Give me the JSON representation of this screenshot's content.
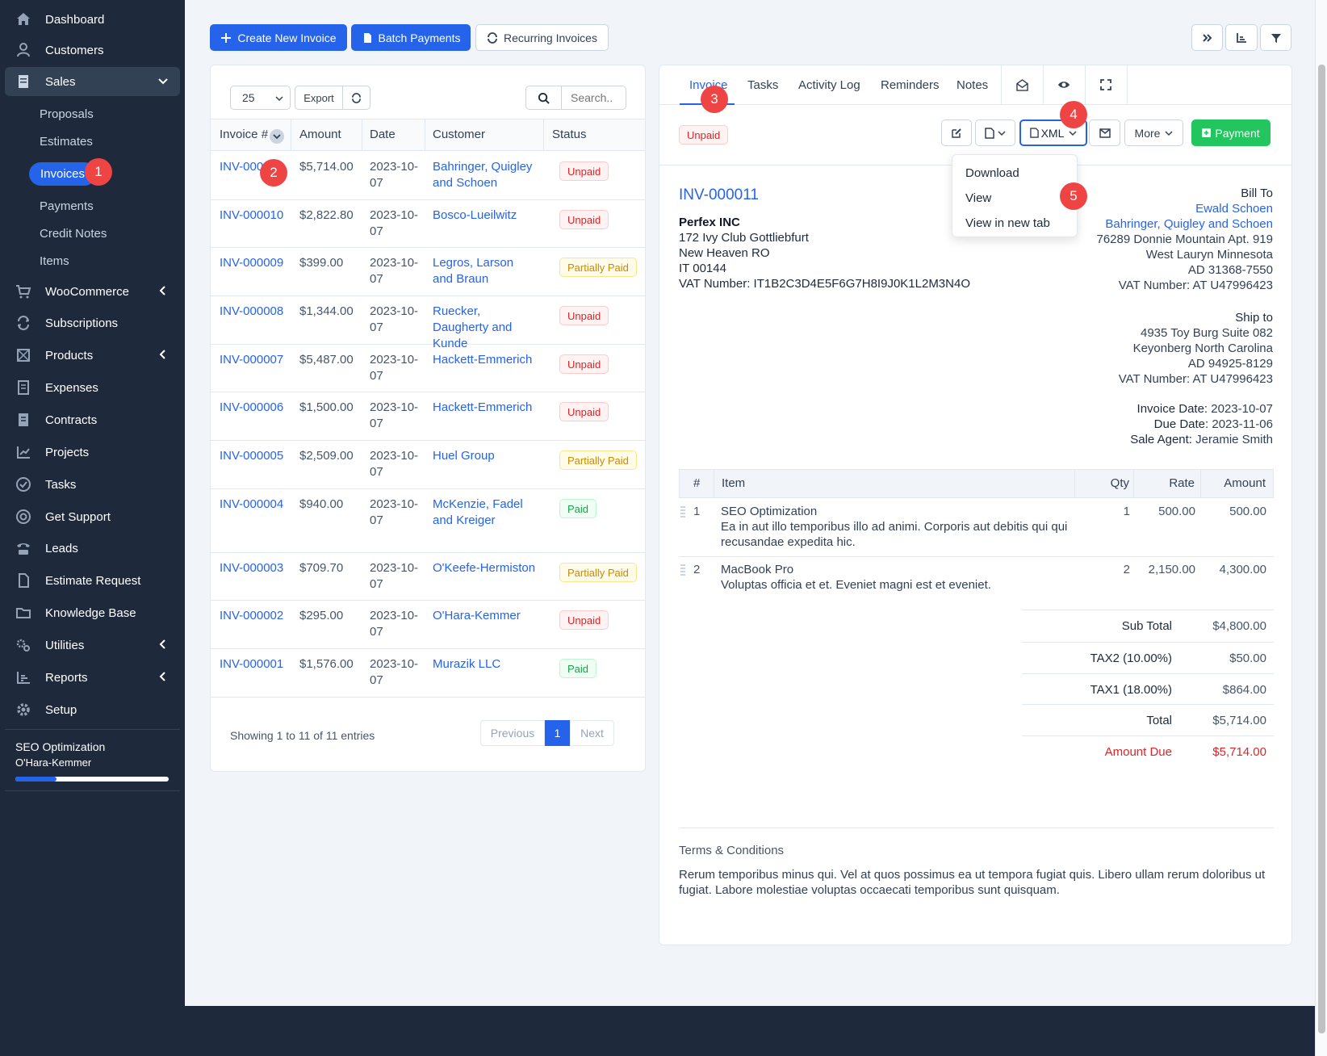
{
  "sidebar": {
    "items": [
      {
        "label": "Dashboard",
        "icon": "home-icon"
      },
      {
        "label": "Customers",
        "icon": "user-icon"
      },
      {
        "label": "Sales",
        "icon": "document-icon"
      },
      {
        "label": "WooCommerce",
        "icon": "cart-icon"
      },
      {
        "label": "Subscriptions",
        "icon": "refresh-icon"
      },
      {
        "label": "Products",
        "icon": "box-icon"
      },
      {
        "label": "Expenses",
        "icon": "receipt-icon"
      },
      {
        "label": "Contracts",
        "icon": "contract-icon"
      },
      {
        "label": "Projects",
        "icon": "chart-icon"
      },
      {
        "label": "Tasks",
        "icon": "check-circle-icon"
      },
      {
        "label": "Get Support",
        "icon": "lifebuoy-icon"
      },
      {
        "label": "Leads",
        "icon": "tty-icon"
      },
      {
        "label": "Estimate Request",
        "icon": "file-icon"
      },
      {
        "label": "Knowledge Base",
        "icon": "folder-icon"
      },
      {
        "label": "Utilities",
        "icon": "cogs-icon"
      },
      {
        "label": "Reports",
        "icon": "bar-chart-icon"
      },
      {
        "label": "Setup",
        "icon": "gear-icon"
      }
    ],
    "sales_sub": [
      "Proposals",
      "Estimates",
      "Invoices",
      "Payments",
      "Credit Notes",
      "Items"
    ],
    "timer": {
      "task": "SEO Optimization",
      "customer": "O'Hara-Kemmer",
      "progress": 0.27
    }
  },
  "markers": [
    "1",
    "2",
    "3",
    "4",
    "5"
  ],
  "toolbar": {
    "create_label": "Create New Invoice",
    "batch_label": "Batch Payments",
    "recurring_label": "Recurring Invoices"
  },
  "list": {
    "page_size": "25",
    "export_label": "Export",
    "search_placeholder": "Search..",
    "columns": [
      "Invoice #",
      "Amount",
      "Date",
      "Customer",
      "Status"
    ],
    "rows": [
      {
        "number": "INV-000011",
        "amount": "$5,714.00",
        "date1": "2023-10-",
        "date2": "07",
        "customer": "Bahringer, Quigley and Schoen",
        "status": "Unpaid"
      },
      {
        "number": "INV-000010",
        "amount": "$2,822.80",
        "date1": "2023-10-",
        "date2": "07",
        "customer": "Bosco-Lueilwitz",
        "status": "Unpaid"
      },
      {
        "number": "INV-000009",
        "amount": "$399.00",
        "date1": "2023-10-",
        "date2": "07",
        "customer": "Legros, Larson and Braun",
        "status": "Partially Paid"
      },
      {
        "number": "INV-000008",
        "amount": "$1,344.00",
        "date1": "2023-10-",
        "date2": "07",
        "customer": "Ruecker, Daugherty and Kunde",
        "status": "Unpaid"
      },
      {
        "number": "INV-000007",
        "amount": "$5,487.00",
        "date1": "2023-10-",
        "date2": "07",
        "customer": "Hackett-Emmerich",
        "status": "Unpaid"
      },
      {
        "number": "INV-000006",
        "amount": "$1,500.00",
        "date1": "2023-10-",
        "date2": "07",
        "customer": "Hackett-Emmerich",
        "status": "Unpaid"
      },
      {
        "number": "INV-000005",
        "amount": "$2,509.00",
        "date1": "2023-10-",
        "date2": "07",
        "customer": "Huel Group",
        "status": "Partially Paid"
      },
      {
        "number": "INV-000004",
        "amount": "$940.00",
        "date1": "2023-10-",
        "date2": "07",
        "customer": "McKenzie, Fadel and Kreiger",
        "status": "Paid"
      },
      {
        "number": "INV-000003",
        "amount": "$709.70",
        "date1": "2023-10-",
        "date2": "07",
        "customer": "O'Keefe-Hermiston",
        "status": "Partially Paid"
      },
      {
        "number": "INV-000002",
        "amount": "$295.00",
        "date1": "2023-10-",
        "date2": "07",
        "customer": "O'Hara-Kemmer",
        "status": "Unpaid"
      },
      {
        "number": "INV-000001",
        "amount": "$1,576.00",
        "date1": "2023-10-",
        "date2": "07",
        "customer": "Murazik LLC",
        "status": "Paid"
      }
    ],
    "showing": "Showing 1 to 11 of 11 entries",
    "prev_label": "Previous",
    "page": "1",
    "next_label": "Next"
  },
  "detail": {
    "tabs": [
      "Invoice",
      "Tasks",
      "Activity Log",
      "Reminders",
      "Notes"
    ],
    "status": "Unpaid",
    "xml_label": "XML",
    "more_label": "More",
    "payment_label": "Payment",
    "dropdown": [
      "Download",
      "View",
      "View in new tab"
    ],
    "invoice_number": "INV-000011",
    "company": {
      "name": "Perfex INC",
      "line1": "172 Ivy Club Gottliebfurt",
      "line2": "New Heaven RO",
      "line3": "IT 00144",
      "vat": "VAT Number: IT1B2C3D4E5F6G7H8I9J0K1L2M3N4O"
    },
    "bill_to": {
      "heading": "Bill To",
      "contact": "Ewald Schoen",
      "company": "Bahringer, Quigley and Schoen",
      "line1": "76289 Donnie Mountain Apt. 919",
      "line2": "West Lauryn Minnesota",
      "line3": "AD 31368-7550",
      "vat": "VAT Number: AT U47996423"
    },
    "ship_to": {
      "heading": "Ship to",
      "line1": "4935 Toy Burg Suite 082",
      "line2": "Keyonberg North Carolina",
      "line3": "AD 94925-8129",
      "vat": "VAT Number: AT U47996423"
    },
    "invoice_date_label": "Invoice Date:",
    "invoice_date": "2023-10-07",
    "due_date_label": "Due Date:",
    "due_date": "2023-11-06",
    "agent_label": "Sale Agent:",
    "agent": "Jeramie Smith",
    "items_header": [
      "#",
      "Item",
      "Qty",
      "Rate",
      "Amount"
    ],
    "items": [
      {
        "n": "1",
        "name": "SEO Optimization",
        "desc1": "Ea in aut illo temporibus illo ad animi. Corporis aut debitis qui qui",
        "desc2": "recusandae expedita hic.",
        "qty": "1",
        "rate": "500.00",
        "amount": "500.00"
      },
      {
        "n": "2",
        "name": "MacBook Pro",
        "desc1": "Voluptas officia et et. Eveniet magni est et eveniet.",
        "desc2": "",
        "qty": "2",
        "rate": "2,150.00",
        "amount": "4,300.00"
      }
    ],
    "totals": [
      {
        "label": "Sub Total",
        "value": "$4,800.00"
      },
      {
        "label": "TAX2 (10.00%)",
        "value": "$50.00"
      },
      {
        "label": "TAX1 (18.00%)",
        "value": "$864.00"
      },
      {
        "label": "Total",
        "value": "$5,714.00"
      },
      {
        "label": "Amount Due",
        "value": "$5,714.00"
      }
    ],
    "terms_heading": "Terms & Conditions",
    "terms_line1": "Rerum temporibus minus qui. Vel at quos possimus ea ut tempora fugiat quis. Libero ullam rerum doloribus ut",
    "terms_line2": "fugiat. Labore molestiae voluptas occaecati temporibus sunt quisquam."
  },
  "colors": {
    "sidebar": "#1e293b",
    "primary": "#2563eb",
    "success": "#22c55e",
    "danger": "#dc2626"
  }
}
